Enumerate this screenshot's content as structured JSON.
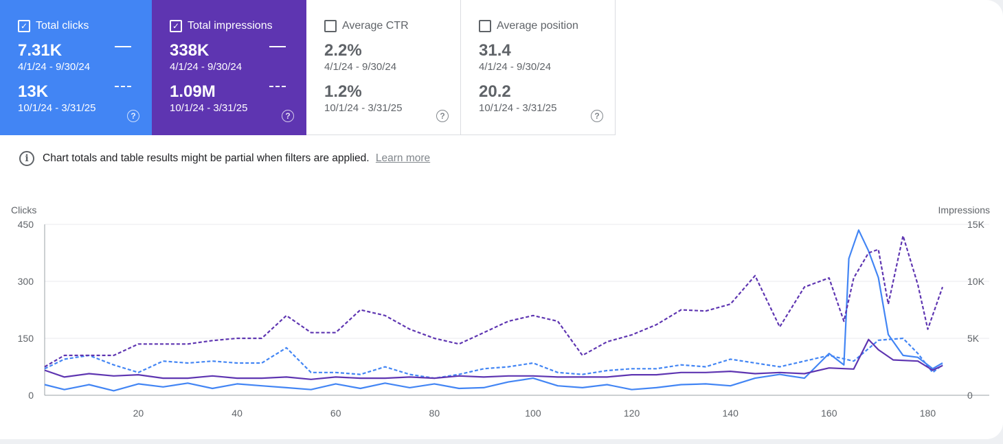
{
  "colors": {
    "clicks": "#4285f4",
    "impressions": "#5e35b1",
    "clicks_card_bg": "#4285f4",
    "impressions_card_bg": "#5e35b1"
  },
  "metrics": {
    "clicks": {
      "label": "Total clicks",
      "checked": true,
      "current_value": "7.31K",
      "current_range": "4/1/24 - 9/30/24",
      "previous_value": "13K",
      "previous_range": "10/1/24 - 3/31/25"
    },
    "impressions": {
      "label": "Total impressions",
      "checked": true,
      "current_value": "338K",
      "current_range": "4/1/24 - 9/30/24",
      "previous_value": "1.09M",
      "previous_range": "10/1/24 - 3/31/25"
    },
    "ctr": {
      "label": "Average CTR",
      "checked": false,
      "current_value": "2.2%",
      "current_range": "4/1/24 - 9/30/24",
      "previous_value": "1.2%",
      "previous_range": "10/1/24 - 3/31/25"
    },
    "position": {
      "label": "Average position",
      "checked": false,
      "current_value": "31.4",
      "current_range": "4/1/24 - 9/30/24",
      "previous_value": "20.2",
      "previous_range": "10/1/24 - 3/31/25"
    }
  },
  "notice": {
    "text": "Chart totals and table results might be partial when filters are applied.",
    "link": "Learn more"
  },
  "icons": {
    "checkbox": "check-icon",
    "help": "help-icon",
    "info": "info-icon"
  },
  "chart_data": {
    "type": "line",
    "left_axis": {
      "label": "Clicks",
      "range": [
        0,
        450
      ],
      "ticks": [
        0,
        150,
        300,
        450
      ],
      "tick_labels": [
        "0",
        "150",
        "300",
        "450"
      ]
    },
    "right_axis": {
      "label": "Impressions",
      "range": [
        0,
        15000
      ],
      "ticks": [
        0,
        5000,
        10000,
        15000
      ],
      "tick_labels": [
        "0",
        "5K",
        "10K",
        "15K"
      ]
    },
    "x_axis": {
      "range": [
        1,
        183
      ],
      "ticks": [
        20,
        40,
        60,
        80,
        100,
        120,
        140,
        160,
        180
      ],
      "tick_labels": [
        "20",
        "40",
        "60",
        "80",
        "100",
        "120",
        "140",
        "160",
        "180"
      ]
    },
    "grid": true,
    "series": [
      {
        "name": "Total clicks",
        "period": "4/1/24 - 9/30/24",
        "axis": "left",
        "style": "solid",
        "color": "#4285f4",
        "x": [
          1,
          5,
          10,
          15,
          20,
          25,
          30,
          35,
          40,
          45,
          50,
          55,
          60,
          65,
          70,
          75,
          80,
          85,
          90,
          95,
          100,
          105,
          110,
          115,
          120,
          125,
          130,
          135,
          140,
          145,
          150,
          155,
          160,
          163,
          164,
          166,
          168,
          170,
          172,
          175,
          178,
          181,
          183
        ],
        "y": [
          28,
          15,
          28,
          12,
          30,
          22,
          32,
          18,
          30,
          25,
          20,
          15,
          30,
          18,
          32,
          20,
          30,
          18,
          20,
          35,
          45,
          25,
          20,
          28,
          15,
          20,
          28,
          30,
          25,
          45,
          55,
          45,
          110,
          80,
          360,
          435,
          380,
          310,
          160,
          105,
          100,
          70,
          85
        ]
      },
      {
        "name": "Total clicks",
        "period": "10/1/24 - 3/31/25",
        "axis": "left",
        "style": "dashed",
        "color": "#4285f4",
        "x": [
          1,
          5,
          10,
          15,
          20,
          25,
          30,
          35,
          40,
          45,
          50,
          55,
          60,
          65,
          70,
          75,
          80,
          85,
          90,
          95,
          100,
          105,
          110,
          115,
          120,
          125,
          130,
          135,
          140,
          145,
          150,
          155,
          160,
          165,
          170,
          175,
          178,
          181,
          183
        ],
        "y": [
          70,
          95,
          105,
          80,
          60,
          90,
          85,
          90,
          85,
          85,
          125,
          60,
          60,
          55,
          75,
          55,
          45,
          55,
          70,
          75,
          85,
          60,
          55,
          65,
          70,
          70,
          80,
          75,
          95,
          85,
          75,
          90,
          105,
          90,
          145,
          150,
          110,
          60,
          80
        ]
      },
      {
        "name": "Total impressions",
        "period": "4/1/24 - 9/30/24",
        "axis": "right",
        "style": "solid",
        "color": "#5e35b1",
        "x": [
          1,
          5,
          10,
          15,
          20,
          25,
          30,
          35,
          40,
          45,
          50,
          55,
          60,
          65,
          70,
          75,
          80,
          85,
          90,
          95,
          100,
          105,
          110,
          115,
          120,
          125,
          130,
          135,
          140,
          145,
          150,
          155,
          160,
          165,
          168,
          170,
          173,
          178,
          181,
          183
        ],
        "y": [
          2200,
          1600,
          1900,
          1700,
          1800,
          1500,
          1500,
          1700,
          1500,
          1500,
          1600,
          1400,
          1600,
          1500,
          1500,
          1600,
          1500,
          1700,
          1600,
          1700,
          1700,
          1600,
          1600,
          1600,
          1800,
          1800,
          2000,
          2000,
          2100,
          1900,
          2000,
          1900,
          2400,
          2300,
          4900,
          4000,
          3100,
          3000,
          2200,
          2600
        ]
      },
      {
        "name": "Total impressions",
        "period": "10/1/24 - 3/31/25",
        "axis": "right",
        "style": "dashed",
        "color": "#5e35b1",
        "x": [
          1,
          5,
          10,
          15,
          20,
          25,
          30,
          35,
          40,
          45,
          50,
          55,
          60,
          65,
          70,
          75,
          80,
          85,
          90,
          95,
          100,
          105,
          110,
          115,
          120,
          125,
          130,
          135,
          140,
          145,
          150,
          155,
          160,
          163,
          165,
          168,
          170,
          172,
          175,
          178,
          180,
          183
        ],
        "y": [
          2500,
          3500,
          3500,
          3500,
          4500,
          4500,
          4500,
          4800,
          5000,
          5000,
          7000,
          5500,
          5500,
          7500,
          7000,
          5800,
          5000,
          4500,
          5500,
          6500,
          7000,
          6500,
          3500,
          4700,
          5300,
          6200,
          7500,
          7400,
          8000,
          10500,
          6000,
          9500,
          10300,
          6500,
          10300,
          12500,
          12800,
          8000,
          14000,
          9700,
          5800,
          9500
        ]
      }
    ]
  }
}
